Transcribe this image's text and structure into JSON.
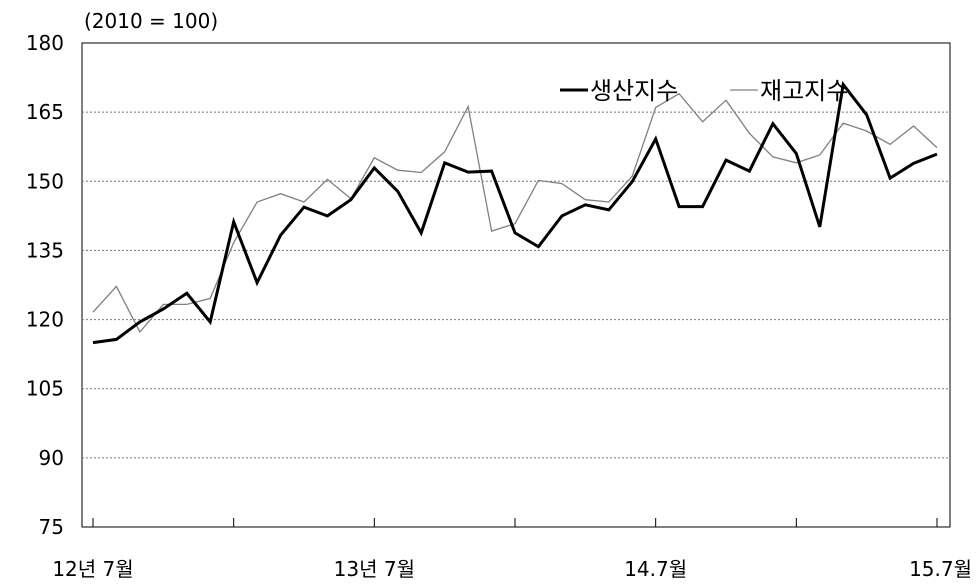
{
  "chart_data": {
    "type": "line",
    "unit_label": "(2010 = 100)",
    "ylim": [
      75,
      180
    ],
    "yticks": [
      180,
      165,
      150,
      135,
      120,
      105,
      90,
      75
    ],
    "grid": "horizontal dotted",
    "legend_position": "top-right",
    "xtick_labels": [
      "12년 7월",
      "13년 7월",
      "14.7월",
      "15.7월"
    ],
    "series": [
      {
        "name": "생산지수",
        "color": "#000000",
        "style": "thick",
        "values": [
          115,
          115.7,
          119.5,
          122.3,
          125.7,
          119.5,
          141.2,
          128,
          138.3,
          144.4,
          142.5,
          146,
          152.9,
          147.8,
          138.8,
          154,
          152,
          152.2,
          138.8,
          135.8,
          142.5,
          144.9,
          143.8,
          149.9,
          159.2,
          144.5,
          144.5,
          154.6,
          152.2,
          162.5,
          156,
          140.1,
          171,
          164.4,
          150.7,
          153.9,
          155.9
        ]
      },
      {
        "name": "재고지수",
        "color": "#808080",
        "style": "thin",
        "values": [
          121.6,
          127.2,
          117.3,
          123.3,
          123.3,
          124.6,
          136.7,
          145.5,
          147.3,
          145.5,
          150.4,
          146.2,
          155.1,
          152.4,
          151.9,
          156.4,
          166.2,
          139.2,
          140.8,
          150.2,
          149.5,
          146,
          145.5,
          151.1,
          166,
          169,
          162.9,
          167.6,
          160.4,
          155.3,
          154,
          155.7,
          162.6,
          160.9,
          158,
          162,
          157.3
        ]
      }
    ]
  }
}
